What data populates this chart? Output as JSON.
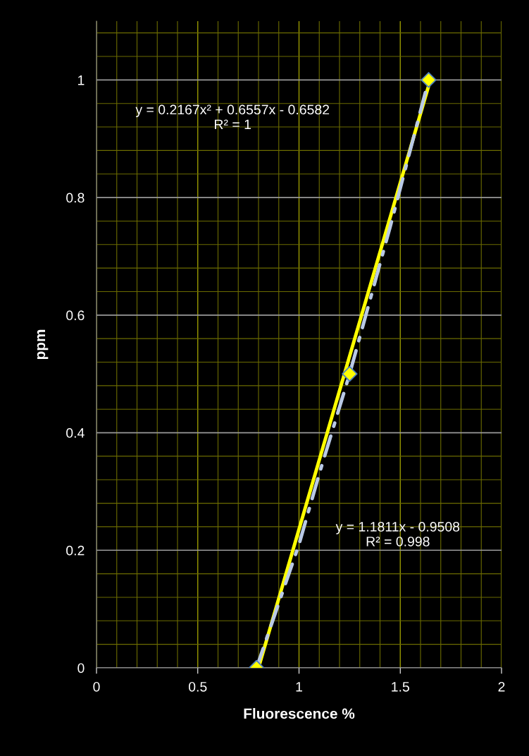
{
  "chart_data": {
    "type": "scatter",
    "xlabel": "Fluorescence %",
    "ylabel": "ppm",
    "xlim": [
      0,
      2
    ],
    "xticks": [
      0,
      {
        "value": 0.1,
        "label": null
      },
      {
        "value": 0.2,
        "label": null
      },
      {
        "value": 0.3,
        "label": null
      },
      {
        "value": 0.4,
        "label": null
      },
      0.5,
      {
        "value": 0.6,
        "label": null
      },
      {
        "value": 0.7,
        "label": null
      },
      {
        "value": 0.8,
        "label": null
      },
      {
        "value": 0.9,
        "label": null
      },
      1,
      {
        "value": 1.1,
        "label": null
      },
      {
        "value": 1.2,
        "label": null
      },
      {
        "value": 1.3,
        "label": null
      },
      {
        "value": 1.4,
        "label": null
      },
      1.5,
      {
        "value": 1.6,
        "label": null
      },
      {
        "value": 1.7,
        "label": null
      },
      {
        "value": 1.8,
        "label": null
      },
      {
        "value": 1.9,
        "label": null
      },
      2
    ],
    "ylim": [
      0,
      1.1
    ],
    "yticks": [
      0,
      {
        "value": 0.04,
        "label": null
      },
      {
        "value": 0.08,
        "label": null
      },
      {
        "value": 0.12,
        "label": null
      },
      {
        "value": 0.16,
        "label": null
      },
      0.2,
      {
        "value": 0.24,
        "label": null
      },
      {
        "value": 0.28,
        "label": null
      },
      {
        "value": 0.32,
        "label": null
      },
      {
        "value": 0.36,
        "label": null
      },
      0.4,
      {
        "value": 0.44,
        "label": null
      },
      {
        "value": 0.48,
        "label": null
      },
      {
        "value": 0.52,
        "label": null
      },
      {
        "value": 0.56,
        "label": null
      },
      0.6,
      {
        "value": 0.64,
        "label": null
      },
      {
        "value": 0.68,
        "label": null
      },
      {
        "value": 0.72,
        "label": null
      },
      {
        "value": 0.76,
        "label": null
      },
      0.8,
      {
        "value": 0.84,
        "label": null
      },
      {
        "value": 0.88,
        "label": null
      },
      {
        "value": 0.92,
        "label": null
      },
      {
        "value": 0.96,
        "label": null
      },
      1,
      {
        "value": 1.04,
        "label": null
      },
      {
        "value": 1.08,
        "label": null
      }
    ],
    "grid": true,
    "marker": "diamond",
    "series": [
      {
        "type": "line",
        "color": "#ffff00",
        "line_style": "solid",
        "marker": "none",
        "x": [
          0.8,
          1.64
        ],
        "values": [
          0.0,
          0.99
        ]
      },
      {
        "type": "line",
        "color": "#b9c9e6",
        "line_style": "dashed",
        "marker": "none",
        "x": [
          0.79,
          0.9,
          1.0,
          1.1,
          1.25,
          1.45,
          1.64
        ],
        "values": [
          0,
          0.11,
          0.21,
          0.33,
          0.5,
          0.75,
          1
        ]
      },
      {
        "color": "#ffff00",
        "x": [
          0.79,
          1.25,
          1.64
        ],
        "values": [
          0,
          0.5,
          1
        ]
      }
    ],
    "annotations": [
      "y = 0.2167x² + 0.6557x - 0.6582\nR² = 1",
      "y = 1.1811x - 0.9508\nR² = 0.998"
    ]
  }
}
